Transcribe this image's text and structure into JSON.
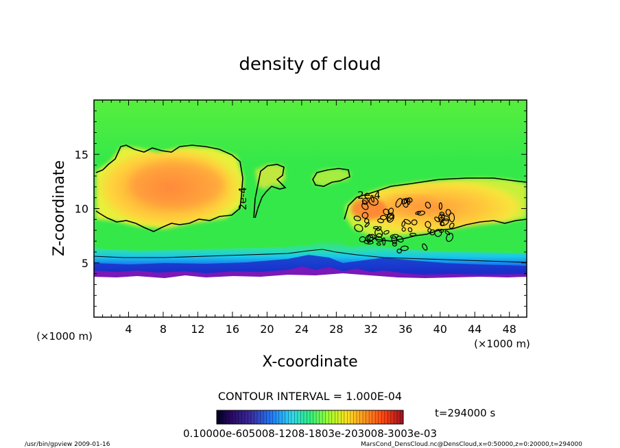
{
  "chart_data": {
    "type": "heatmap",
    "title": "density of cloud",
    "xlabel": "X-coordinate",
    "ylabel": "Z-coordinate",
    "x_unit_label": "(×1000 m)",
    "y_unit_label": "(×1000 m)",
    "xlim": [
      0,
      50
    ],
    "ylim": [
      0,
      20
    ],
    "x_tick_labels": [
      "4",
      "8",
      "12",
      "16",
      "20",
      "24",
      "28",
      "32",
      "36",
      "40",
      "44",
      "48"
    ],
    "x_tick_values": [
      4,
      8,
      12,
      16,
      20,
      24,
      28,
      32,
      36,
      40,
      44,
      48
    ],
    "y_tick_labels": [
      "5",
      "10",
      "15"
    ],
    "y_tick_values": [
      5,
      10,
      15
    ],
    "contour_interval_text": "CONTOUR INTERVAL = 1.000E-04",
    "contour_labels": [
      {
        "text": "2e-4",
        "x": 17.2,
        "z": 11.8,
        "rotate": -90
      },
      {
        "text": "2e-4",
        "x": 31.8,
        "z": 11.1,
        "rotate": 0
      }
    ],
    "time_label": "t=294000 s",
    "colorbar_labels_text": "0.10000e-605008-1208-1803e-203008-3003e-03",
    "colorbar_colors": [
      "#000033",
      "#2a0a66",
      "#3a1a99",
      "#2040d0",
      "#2090ff",
      "#30d0ff",
      "#20f0c0",
      "#30ff60",
      "#80ff30",
      "#d0ff20",
      "#ffe020",
      "#ffb020",
      "#ff7010",
      "#ff4010",
      "#e01010",
      "#900020"
    ],
    "field_colors": {
      "background": "#35e84a",
      "top": "#52f03c",
      "cloud_low": "#f8e63a",
      "cloud_mid": "#ffc43a",
      "cloud_high": "#ff9a3c",
      "cloud_peak": "#ff6a30",
      "band_cyan": "#17c8e8",
      "band_blue": "#1848e8",
      "band_purple": "#7a18b8",
      "ground": "#ffffff"
    },
    "grid": false
  },
  "footer": {
    "left": "/usr/bin/gpview  2009-01-16",
    "right": "MarsCond_DensCloud.nc@DensCloud,x=0:50000,z=0:20000,t=294000"
  }
}
